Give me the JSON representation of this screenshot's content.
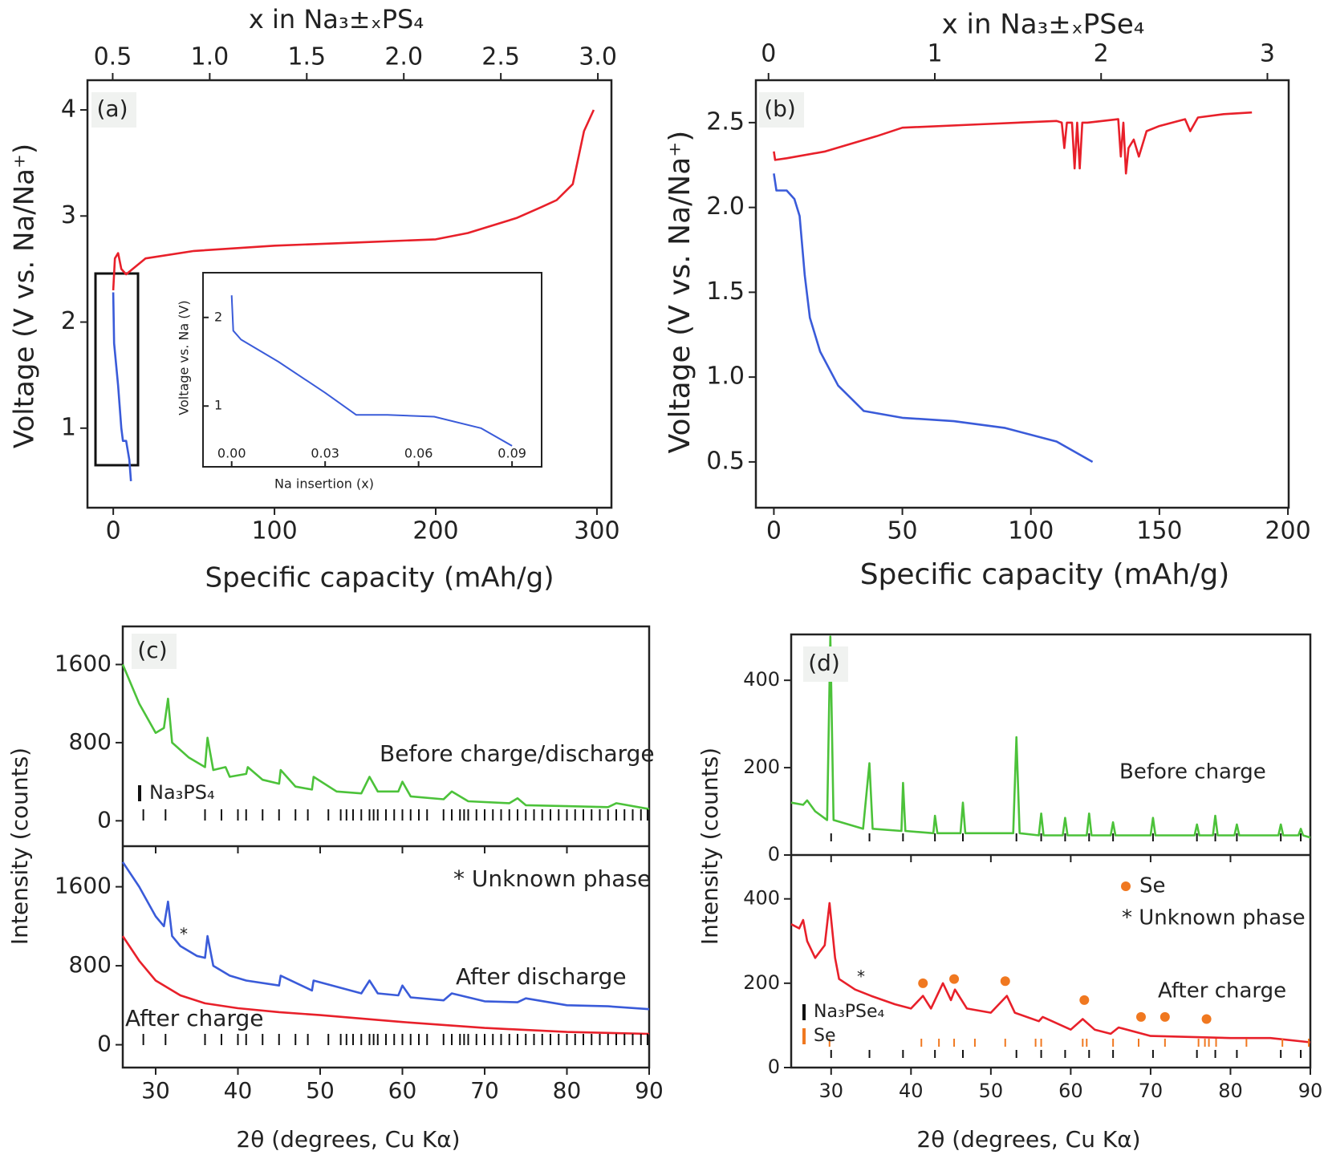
{
  "chart_data": [
    {
      "type": "line",
      "panel_label": "(a)",
      "xlabel": "Specific capacity (mAh/g)",
      "ylabel": "Voltage (V vs. Na/Na⁺)",
      "x2label": "x in Na₃±ₓPS₄",
      "xlim": [
        -16,
        309
      ],
      "ylim": [
        0.25,
        4.28
      ],
      "x2lim": [
        0.37,
        3.07
      ],
      "xticks": [
        0,
        100,
        200,
        300
      ],
      "yticks": [
        1,
        2,
        3,
        4
      ],
      "x2ticks": [
        0.5,
        {
          "value": 1,
          "label": "1.0"
        },
        1.5,
        {
          "value": 2,
          "label": "2.0"
        },
        2.5,
        {
          "value": 3,
          "label": "3.0"
        }
      ],
      "series": [
        {
          "color": "#e8202a",
          "x": [
            0,
            1,
            3,
            5,
            8,
            12,
            20,
            50,
            100,
            150,
            200,
            220,
            250,
            265,
            275,
            285,
            292,
            298
          ],
          "values": [
            2.3,
            2.6,
            2.65,
            2.5,
            2.45,
            2.5,
            2.6,
            2.67,
            2.72,
            2.75,
            2.78,
            2.84,
            2.98,
            3.08,
            3.15,
            3.3,
            3.8,
            4.0
          ]
        },
        {
          "color": "#3a5bd9",
          "x": [
            0,
            0.5,
            3,
            5,
            6,
            8,
            10,
            11
          ],
          "values": [
            2.28,
            1.8,
            1.4,
            1.0,
            0.88,
            0.88,
            0.7,
            0.5
          ]
        }
      ]
    },
    {
      "type": "line",
      "xlabel": "Na insertion (x)",
      "ylabel": "Voltage vs. Na (V)",
      "xlim": [
        -0.0092,
        0.0995
      ],
      "ylim": [
        0.314,
        2.505
      ],
      "xticks": [
        {
          "value": 0,
          "label": "0.00"
        },
        0.03,
        0.06,
        0.09
      ],
      "yticks": [
        1,
        2
      ],
      "series": [
        {
          "color": "#3a5bd9",
          "x": [
            0,
            0.0005,
            0.003,
            0.015,
            0.03,
            0.04,
            0.05,
            0.065,
            0.08,
            0.09
          ],
          "values": [
            2.25,
            1.85,
            1.75,
            1.5,
            1.15,
            0.9,
            0.9,
            0.88,
            0.75,
            0.55
          ]
        }
      ]
    },
    {
      "type": "line",
      "panel_label": "(b)",
      "xlabel": "Specific capacity (mAh/g)",
      "ylabel": "Voltage (V vs. Na/Na⁺)",
      "x2label": "x in Na₃±ₓPSe₄",
      "xlim": [
        -7,
        200.3
      ],
      "ylim": [
        0.23,
        2.75
      ],
      "x2lim": [
        -0.076,
        3.128
      ],
      "xticks": [
        0,
        50,
        100,
        150,
        200
      ],
      "yticks": [
        0.5,
        {
          "value": 1,
          "label": "1.0"
        },
        1.5,
        {
          "value": 2,
          "label": "2.0"
        },
        2.5
      ],
      "x2ticks": [
        0,
        1,
        2,
        3
      ],
      "series": [
        {
          "color": "#e8202a",
          "x": [
            0,
            0.5,
            5,
            20,
            40,
            50,
            80,
            110,
            112,
            113,
            114,
            116,
            117,
            118,
            119,
            120,
            122,
            134,
            135,
            136,
            137,
            138,
            140,
            142,
            145,
            150,
            160,
            162,
            165,
            175,
            186
          ],
          "values": [
            2.33,
            2.28,
            2.29,
            2.33,
            2.42,
            2.47,
            2.49,
            2.51,
            2.5,
            2.35,
            2.5,
            2.5,
            2.23,
            2.5,
            2.23,
            2.5,
            2.5,
            2.52,
            2.3,
            2.5,
            2.2,
            2.35,
            2.4,
            2.3,
            2.45,
            2.48,
            2.52,
            2.45,
            2.53,
            2.55,
            2.56
          ]
        },
        {
          "color": "#3a5bd9",
          "x": [
            0,
            1,
            5,
            8,
            10,
            12,
            14,
            18,
            25,
            35,
            50,
            70,
            90,
            110,
            124
          ],
          "values": [
            2.2,
            2.1,
            2.1,
            2.05,
            1.95,
            1.6,
            1.35,
            1.15,
            0.95,
            0.8,
            0.76,
            0.74,
            0.7,
            0.62,
            0.5
          ]
        }
      ]
    },
    {
      "type": "line",
      "panel_label": "(c)",
      "xlabel": "2θ (degrees, Cu Kα)",
      "ylabel": "Intensity (counts)",
      "xlim": [
        26,
        90
      ],
      "xticks": [
        30,
        40,
        50,
        60,
        70,
        80,
        90
      ],
      "subplots": [
        {
          "ylim": [
            -260,
            1990
          ],
          "yticks": [
            0,
            800,
            1600
          ],
          "series": [
            {
              "color": "#4cc23a",
              "x": [
                26,
                28,
                30,
                31,
                31.5,
                32,
                34,
                36,
                36.3,
                37,
                38.5,
                39,
                41,
                41.2,
                43,
                45,
                45.2,
                47,
                49,
                49.2,
                52,
                55,
                56,
                57,
                59.5,
                60,
                61,
                65,
                66,
                68,
                73,
                74,
                75,
                80,
                85,
                86,
                90
              ],
              "values": [
                1600,
                1200,
                900,
                950,
                1250,
                800,
                650,
                550,
                850,
                520,
                550,
                450,
                480,
                550,
                420,
                380,
                520,
                350,
                320,
                450,
                300,
                280,
                450,
                300,
                300,
                400,
                250,
                220,
                300,
                200,
                180,
                230,
                160,
                150,
                140,
                180,
                120
              ]
            }
          ],
          "reference_ticks": [
            {
              "name": "Na₃PS₄",
              "color": "#111111",
              "x": [
                28.5,
                31.2,
                36,
                38,
                40,
                41,
                43,
                45,
                47,
                48.5,
                51,
                52.5,
                53.2,
                54,
                55,
                56,
                56.5,
                57,
                58,
                59,
                60,
                61,
                62,
                63,
                65,
                66,
                67,
                67.5,
                68,
                69,
                70,
                71,
                72,
                73,
                74,
                75,
                76,
                77,
                78,
                79,
                80,
                81,
                82,
                83,
                84,
                85,
                86,
                87,
                88,
                89,
                89.8
              ]
            }
          ],
          "annotations": [
            {
              "text": "Before charge/discharge",
              "color": "#4cc23a"
            }
          ]
        },
        {
          "ylim": [
            -231,
            2011
          ],
          "yticks": [
            0,
            800,
            1600
          ],
          "series": [
            {
              "color": "#3a5bd9",
              "x": [
                26,
                28,
                30,
                31,
                31.5,
                32,
                33,
                35,
                36,
                36.3,
                37,
                39,
                41,
                45,
                45.2,
                49,
                49.2,
                55,
                56,
                57,
                59.5,
                60,
                61,
                65,
                66,
                70,
                74,
                75,
                80,
                85,
                90
              ],
              "values": [
                1850,
                1600,
                1300,
                1200,
                1450,
                1100,
                1000,
                900,
                880,
                1100,
                800,
                700,
                650,
                600,
                700,
                550,
                650,
                520,
                650,
                520,
                500,
                600,
                480,
                450,
                520,
                440,
                430,
                470,
                400,
                390,
                360
              ]
            },
            {
              "color": "#e8202a",
              "x": [
                26,
                28,
                30,
                33,
                36,
                40,
                45,
                50,
                60,
                70,
                80,
                90
              ],
              "values": [
                1100,
                850,
                650,
                500,
                420,
                370,
                330,
                300,
                230,
                170,
                130,
                110
              ]
            }
          ],
          "reference_ticks": [
            {
              "color": "#111111",
              "x": [
                28.5,
                31.2,
                36,
                38,
                40,
                41,
                43,
                45,
                47,
                48.5,
                51,
                52.5,
                53.2,
                54,
                55,
                56,
                56.5,
                57,
                58,
                59,
                60,
                61,
                62,
                63,
                65,
                66,
                67,
                67.5,
                68,
                69,
                70,
                71,
                72,
                73,
                74,
                75,
                76,
                77,
                78,
                79,
                80,
                81,
                82,
                83,
                84,
                85,
                86,
                87,
                88,
                89,
                89.8
              ]
            }
          ],
          "annotations": [
            {
              "text": "* Unknown phase",
              "color": "#7a8a8a"
            },
            {
              "text": "*",
              "color": "#7a8a8a"
            },
            {
              "text": "After discharge",
              "color": "#3a5bd9"
            },
            {
              "text": "After charge",
              "color": "#e8202a"
            }
          ]
        }
      ]
    },
    {
      "type": "line",
      "panel_label": "(d)",
      "xlabel": "2θ (degrees, Cu Kα)",
      "ylabel": "Intensity (counts)",
      "xlim": [
        25,
        90
      ],
      "xticks": [
        30,
        40,
        50,
        60,
        70,
        80,
        90
      ],
      "subplots": [
        {
          "ylim": [
            0,
            505
          ],
          "yticks": [
            0,
            200,
            400
          ],
          "series": [
            {
              "color": "#4cc23a",
              "x": [
                25,
                26.5,
                27,
                28,
                29.5,
                29.9,
                30.3,
                34,
                34.8,
                35.2,
                38.8,
                39,
                39.3,
                42.8,
                43,
                43.3,
                46.2,
                46.5,
                46.8,
                52.8,
                53.2,
                53.6,
                56,
                56.3,
                56.6,
                59,
                59.3,
                59.6,
                62,
                62.3,
                62.6,
                65,
                65.3,
                65.6,
                70,
                70.3,
                70.6,
                75.5,
                75.8,
                76.1,
                77.8,
                78.1,
                78.4,
                80.5,
                80.8,
                81.1,
                86,
                86.3,
                86.6,
                88.5,
                88.8,
                89.1,
                90
              ],
              "values": [
                120,
                115,
                125,
                100,
                80,
                500,
                80,
                60,
                210,
                60,
                55,
                165,
                55,
                50,
                90,
                50,
                50,
                120,
                50,
                50,
                270,
                50,
                45,
                95,
                45,
                45,
                85,
                45,
                45,
                95,
                45,
                45,
                75,
                45,
                45,
                85,
                45,
                45,
                70,
                45,
                45,
                90,
                45,
                45,
                70,
                45,
                45,
                70,
                45,
                45,
                60,
                45,
                40
              ]
            }
          ],
          "reference_ticks": [
            {
              "color": "#111111",
              "x": [
                30,
                34.8,
                39,
                43,
                46.5,
                53.2,
                56.3,
                59.3,
                62.3,
                65.3,
                70.3,
                75.8,
                78.1,
                80.8,
                86.3,
                88.8
              ]
            }
          ],
          "annotations": [
            {
              "text": "Before charge",
              "color": "#4cc23a"
            }
          ]
        },
        {
          "ylim": [
            0,
            504
          ],
          "yticks": [
            0,
            200,
            400
          ],
          "series": [
            {
              "color": "#e8202a",
              "x": [
                25,
                26,
                26.5,
                27,
                28,
                29.2,
                29.8,
                30.5,
                31,
                33,
                35,
                38,
                40,
                41.5,
                42.5,
                44,
                45,
                45.5,
                47,
                50,
                52,
                53,
                56,
                56.5,
                60,
                61.5,
                63,
                65,
                66,
                70,
                80,
                85,
                90
              ],
              "values": [
                340,
                330,
                350,
                300,
                260,
                290,
                390,
                260,
                210,
                185,
                170,
                150,
                140,
                170,
                140,
                200,
                160,
                185,
                140,
                130,
                170,
                130,
                110,
                120,
                90,
                115,
                90,
                80,
                95,
                75,
                70,
                70,
                60
              ]
            },
            {
              "type": "scatter",
              "name": "Se",
              "color": "#f07820",
              "x": [
                41.5,
                45.4,
                51.8,
                61.7,
                68.8,
                71.8,
                77
              ],
              "values": [
                200,
                210,
                205,
                160,
                120,
                120,
                115
              ]
            }
          ],
          "reference_ticks": [
            {
              "name": "Na₃PSe₄",
              "color": "#111111",
              "x": [
                30,
                34.8,
                39,
                43,
                46.5,
                53.2,
                56.3,
                59.3,
                62.3,
                65.3,
                70.3,
                75.8,
                78.1,
                80.8,
                86.3,
                88.8
              ]
            },
            {
              "name": "Se",
              "color": "#f07820",
              "x": [
                29.8,
                41.3,
                43.5,
                45.4,
                48,
                51.8,
                55.6,
                56.3,
                61.5,
                62,
                65.3,
                68.5,
                71.8,
                76,
                76.8,
                77.3,
                78.2,
                82,
                86.5,
                89.8
              ]
            }
          ],
          "annotations": [
            {
              "text": "* Unknown phase",
              "color": "#7a8a8a"
            },
            {
              "text": "*",
              "color": "#7a8a8a"
            },
            {
              "text": "After charge",
              "color": "#e8202a"
            }
          ]
        }
      ]
    }
  ]
}
